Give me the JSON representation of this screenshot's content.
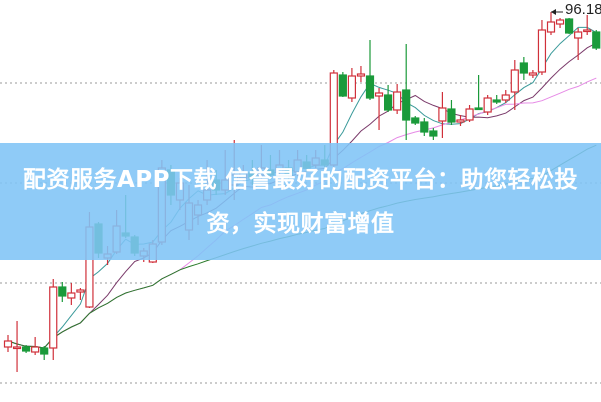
{
  "banner": {
    "text": "配资服务APP下载 信誉最好的配资平台：助您轻松投资，实现财富增值"
  },
  "chart_data": {
    "type": "candlestick",
    "title": "",
    "xlabel": "",
    "ylabel": "",
    "ylim": [
      57.38,
      97.38
    ],
    "grid": "horizontal dotted",
    "colors": {
      "up": "#d0303a",
      "down": "#1a9a3a",
      "ma5": "#3a9a9a",
      "ma10": "#7a3a6a",
      "ma20": "#e68ae6",
      "ma60": "#2a7a2a",
      "grid": "#999999"
    },
    "max_label": "96.18",
    "candles": [
      [
        62.68,
        63.28,
        63.88,
        62.18
      ],
      [
        62.58,
        62.68,
        65.28,
        60.18
      ],
      [
        62.68,
        62.28,
        62.88,
        62.08
      ],
      [
        62.18,
        62.68,
        63.68,
        61.88
      ],
      [
        62.58,
        61.98,
        62.78,
        61.38
      ],
      [
        62.58,
        68.68,
        69.48,
        61.38
      ],
      [
        68.68,
        67.78,
        69.18,
        67.18
      ],
      [
        67.58,
        68.08,
        69.08,
        66.88
      ],
      [
        68.18,
        68.38,
        68.58,
        67.38
      ],
      [
        66.68,
        74.68,
        76.18,
        66.58
      ],
      [
        74.98,
        72.08,
        75.18,
        71.58
      ],
      [
        71.58,
        71.98,
        72.78,
        70.88
      ],
      [
        72.18,
        74.78,
        76.38,
        71.98
      ],
      [
        74.08,
        73.78,
        77.88,
        73.58
      ],
      [
        73.68,
        72.08,
        73.88,
        71.78
      ],
      [
        71.78,
        72.28,
        72.58,
        71.18
      ],
      [
        71.18,
        72.98,
        73.38,
        71.08
      ],
      [
        73.18,
        80.58,
        81.38,
        72.88
      ],
      [
        80.38,
        77.88,
        80.88,
        76.88
      ],
      [
        77.38,
        79.08,
        79.58,
        76.38
      ],
      [
        74.38,
        77.08,
        78.88,
        73.38
      ],
      [
        75.88,
        76.88,
        77.38,
        74.88
      ],
      [
        77.38,
        78.38,
        81.38,
        76.88
      ],
      [
        79.38,
        78.38,
        80.38,
        77.88
      ],
      [
        78.38,
        79.38,
        82.38,
        77.88
      ],
      [
        78.88,
        79.88,
        83.38,
        77.38
      ],
      [
        79.58,
        80.18,
        80.88,
        79.18
      ],
      [
        80.08,
        79.58,
        81.38,
        78.88
      ],
      [
        79.88,
        80.58,
        82.88,
        79.38
      ],
      [
        80.38,
        79.88,
        81.88,
        79.38
      ],
      [
        80.18,
        80.88,
        82.38,
        79.58
      ],
      [
        80.58,
        79.88,
        81.38,
        79.38
      ],
      [
        80.18,
        81.38,
        82.38,
        79.78
      ],
      [
        81.18,
        80.58,
        81.88,
        80.18
      ],
      [
        80.88,
        81.58,
        82.38,
        80.58
      ],
      [
        81.38,
        80.88,
        82.88,
        80.58
      ],
      [
        80.88,
        90.08,
        90.38,
        80.58
      ],
      [
        89.88,
        87.78,
        90.18,
        87.68
      ],
      [
        87.58,
        89.78,
        90.58,
        87.18
      ],
      [
        89.78,
        89.98,
        90.78,
        89.18
      ],
      [
        89.78,
        87.58,
        93.38,
        87.38
      ],
      [
        87.78,
        88.08,
        88.58,
        84.38
      ],
      [
        87.88,
        86.38,
        88.88,
        86.18
      ],
      [
        86.38,
        88.18,
        88.98,
        85.98
      ],
      [
        88.38,
        85.38,
        92.98,
        83.38
      ],
      [
        85.58,
        85.08,
        85.78,
        84.88
      ],
      [
        85.18,
        84.18,
        85.58,
        83.78
      ],
      [
        84.28,
        83.78,
        84.58,
        83.38
      ],
      [
        85.28,
        86.58,
        88.18,
        83.58
      ],
      [
        86.48,
        85.18,
        87.38,
        84.88
      ],
      [
        85.18,
        85.38,
        85.88,
        84.78
      ],
      [
        85.38,
        86.48,
        86.88,
        85.18
      ],
      [
        86.58,
        86.48,
        89.88,
        86.38
      ],
      [
        86.18,
        87.58,
        87.88,
        85.88
      ],
      [
        87.38,
        87.18,
        87.88,
        86.98
      ],
      [
        87.38,
        87.88,
        88.38,
        87.08
      ],
      [
        88.18,
        90.38,
        91.38,
        86.38
      ],
      [
        91.08,
        90.08,
        91.68,
        89.38
      ],
      [
        89.88,
        90.08,
        90.38,
        89.58
      ],
      [
        90.18,
        94.38,
        95.38,
        89.88
      ],
      [
        94.18,
        95.18,
        96.18,
        93.88
      ],
      [
        94.98,
        95.38,
        95.58,
        94.58
      ],
      [
        95.48,
        94.08,
        95.58,
        93.98
      ],
      [
        93.58,
        94.18,
        94.58,
        91.38
      ],
      [
        94.38,
        94.38,
        95.88,
        93.88
      ],
      [
        94.18,
        92.58,
        94.38,
        92.38
      ]
    ],
    "candle_fields": [
      "open",
      "close",
      "high",
      "low"
    ],
    "moving_averages": [
      5,
      10,
      20,
      60
    ]
  }
}
